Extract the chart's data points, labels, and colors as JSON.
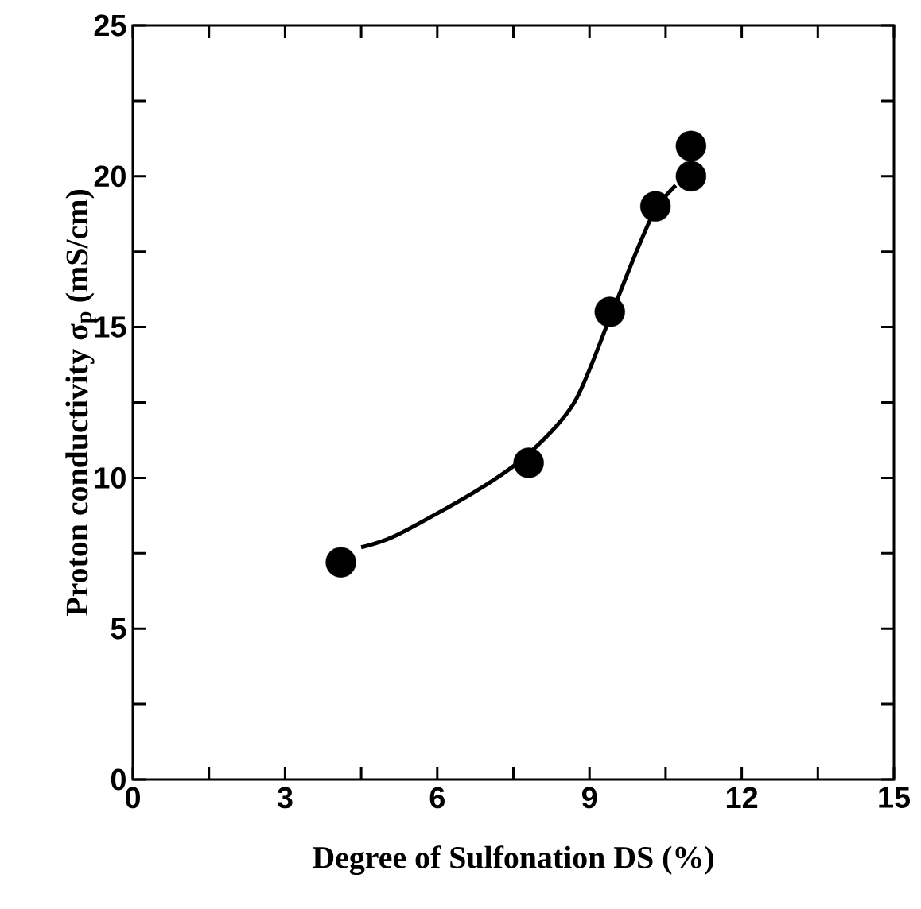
{
  "chart_data": {
    "type": "scatter",
    "xlabel": "Degree of Sulfonation DS (%)",
    "ylabel": "Proton conductivity σ$_{p}$ (mS/cm)",
    "xlim": [
      0,
      15
    ],
    "ylim": [
      0,
      25
    ],
    "xticks": [
      0,
      {
        "value": 1.5,
        "label": null
      },
      3,
      {
        "value": 4.5,
        "label": null
      },
      6,
      {
        "value": 7.5,
        "label": null
      },
      9,
      {
        "value": 10.5,
        "label": null
      },
      12,
      {
        "value": 13.5,
        "label": null
      },
      15
    ],
    "yticks": [
      0,
      {
        "value": 2.5,
        "label": null
      },
      5,
      {
        "value": 7.5,
        "label": null
      },
      10,
      {
        "value": 12.5,
        "label": null
      },
      15,
      {
        "value": 17.5,
        "label": null
      },
      20,
      {
        "value": 22.5,
        "label": null
      },
      25
    ],
    "series": [
      {
        "type": "line",
        "color": "#000000",
        "marker": "none",
        "line_style": "solid",
        "x": [
          4.5,
          5.2,
          6.8,
          7.8,
          8.7,
          9.4,
          9.9,
          10.3,
          10.7
        ],
        "values": [
          7.7,
          8.1,
          9.6,
          10.8,
          12.5,
          15.3,
          17.4,
          18.9,
          19.7
        ]
      },
      {
        "color": "#000000",
        "marker": "circle",
        "x": [
          4.1,
          7.8,
          9.4,
          10.3,
          11.0,
          11.0
        ],
        "values": [
          7.2,
          10.5,
          15.5,
          19.0,
          20.0,
          21.0
        ]
      }
    ]
  }
}
